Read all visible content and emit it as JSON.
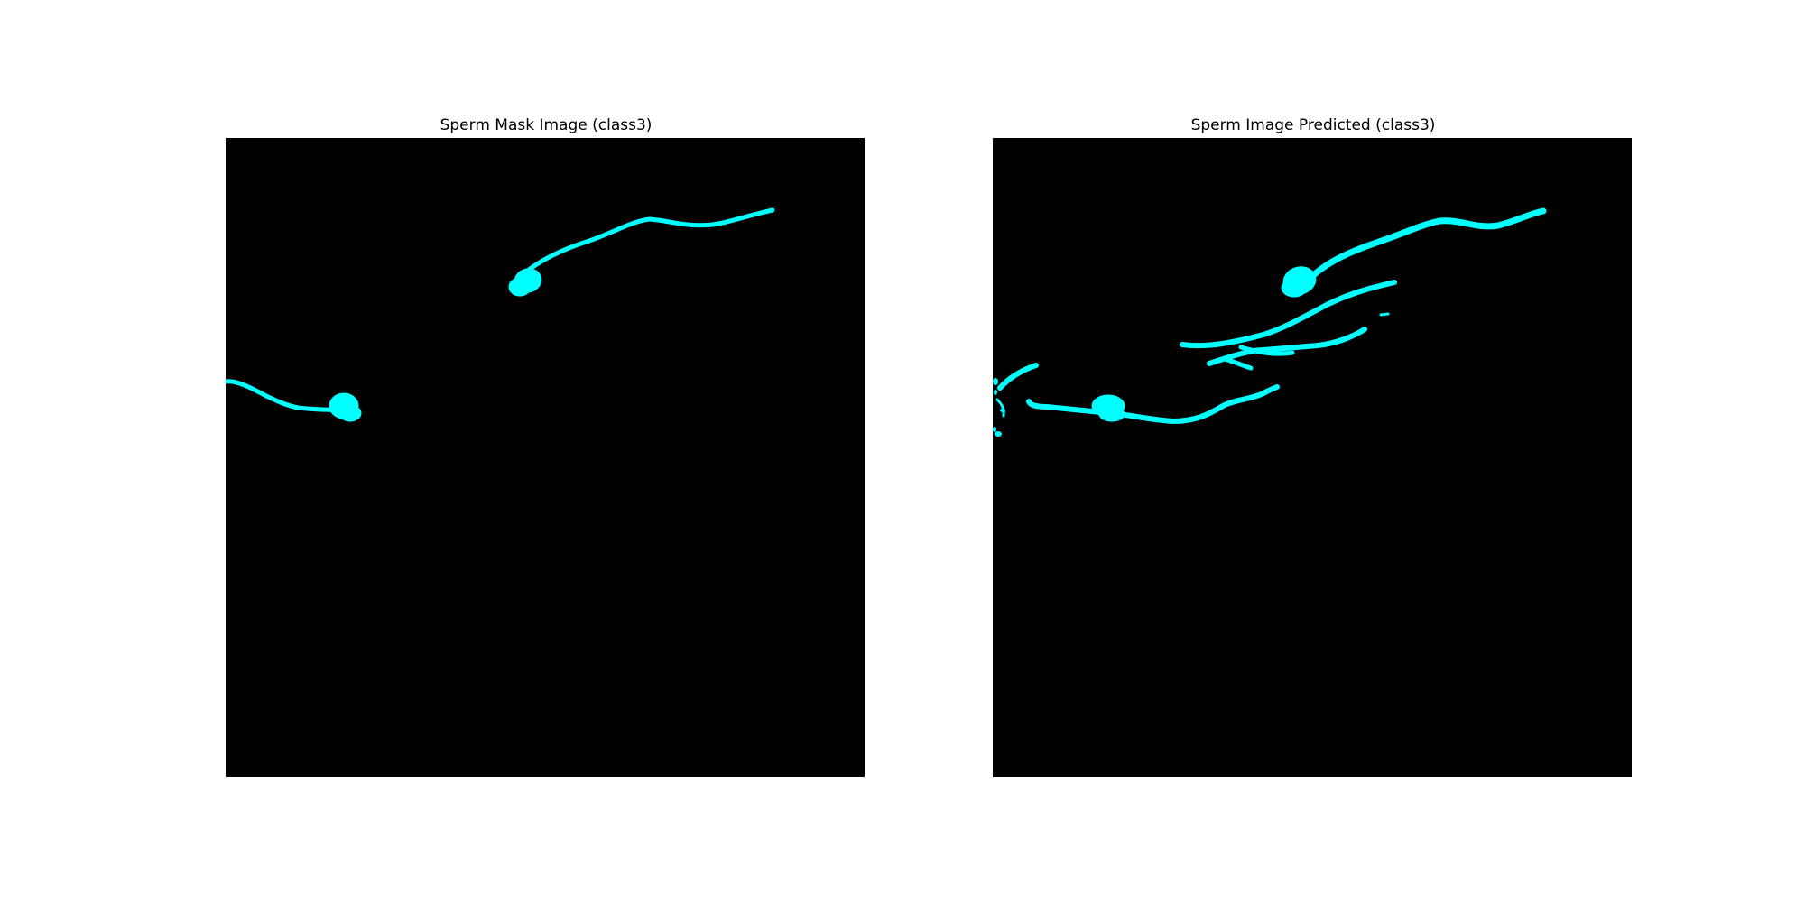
{
  "figure": {
    "background_color": "#ffffff",
    "panels": [
      {
        "title": "Sperm Mask Image (class3)",
        "image_background": "#000000",
        "mask_color": "#00ffff"
      },
      {
        "title": "Sperm Image Predicted (class3)",
        "image_background": "#000000",
        "mask_color": "#00ffff"
      }
    ]
  }
}
